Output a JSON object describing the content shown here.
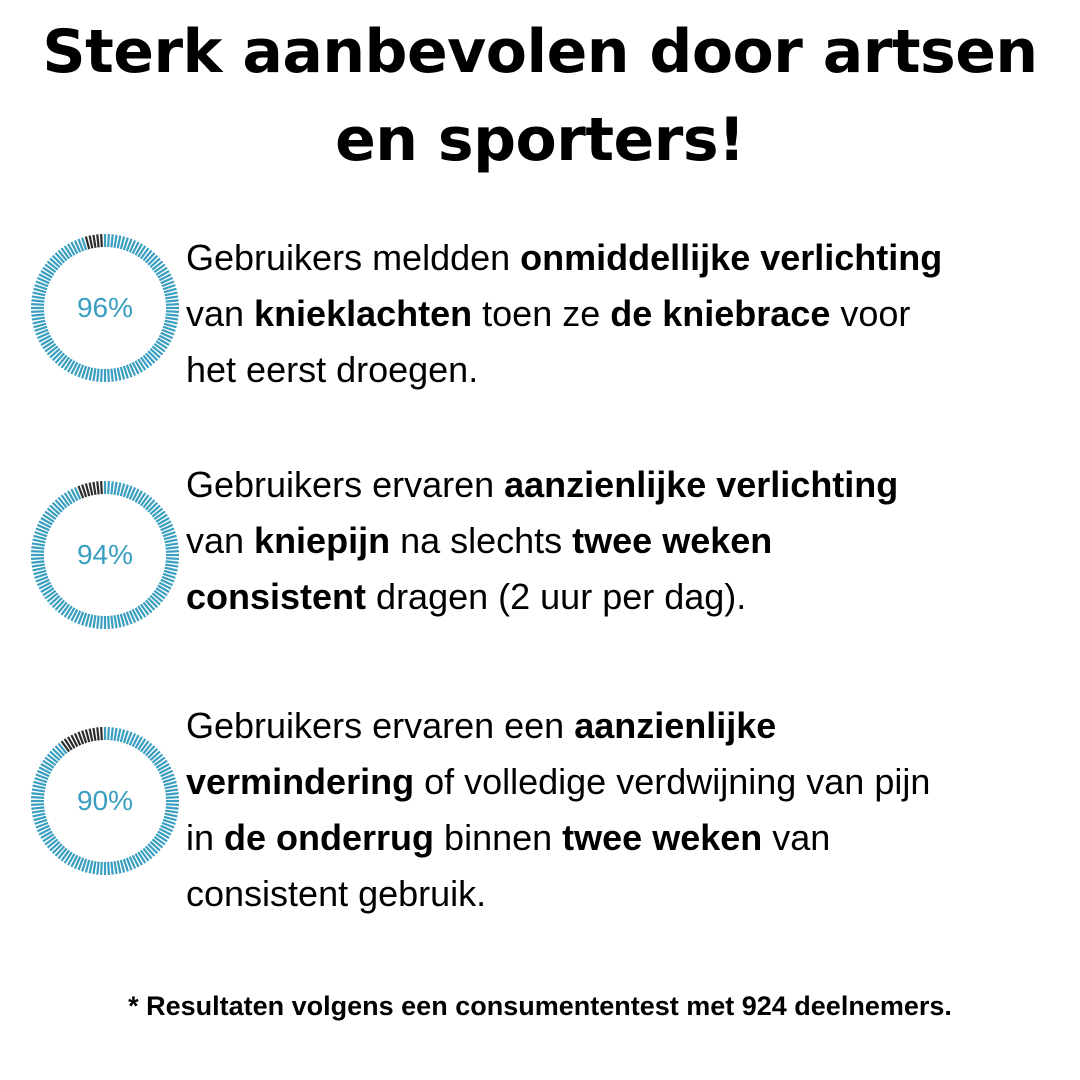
{
  "headline": {
    "line1": "Sterk aanbevolen door artsen",
    "line2": "en sporters!"
  },
  "colors": {
    "ring_fill": "#3a9ec0",
    "ring_remainder": "#2b2b2b",
    "percent_text": "#3a9ec0"
  },
  "chart_data": [
    {
      "type": "pie",
      "label": "96%",
      "value": 96,
      "max": 100
    },
    {
      "type": "pie",
      "label": "94%",
      "value": 94,
      "max": 100
    },
    {
      "type": "pie",
      "label": "90%",
      "value": 90,
      "max": 100
    }
  ],
  "stats": [
    {
      "lines": [
        [
          {
            "t": "Gebruikers meldden ",
            "b": false
          },
          {
            "t": "onmiddellijke verlichting",
            "b": true
          }
        ],
        [
          {
            "t": "van ",
            "b": false
          },
          {
            "t": "knieklachten",
            "b": true
          },
          {
            "t": " toen ze ",
            "b": false
          },
          {
            "t": "de kniebrace",
            "b": true
          },
          {
            "t": " voor",
            "b": false
          }
        ],
        [
          {
            "t": "het eerst droegen.",
            "b": false
          }
        ]
      ]
    },
    {
      "lines": [
        [
          {
            "t": "Gebruikers ervaren ",
            "b": false
          },
          {
            "t": "aanzienlijke verlichting",
            "b": true
          }
        ],
        [
          {
            "t": "van ",
            "b": false
          },
          {
            "t": "kniepijn",
            "b": true
          },
          {
            "t": " na slechts ",
            "b": false
          },
          {
            "t": "twee weken",
            "b": true
          }
        ],
        [
          {
            "t": "consistent",
            "b": true
          },
          {
            "t": "  dragen (2 uur per dag).",
            "b": false
          }
        ]
      ]
    },
    {
      "lines": [
        [
          {
            "t": "Gebruikers ervaren een ",
            "b": false
          },
          {
            "t": "aanzienlijke",
            "b": true
          }
        ],
        [
          {
            "t": "vermindering",
            "b": true
          },
          {
            "t": " of volledige verdwijning van pijn",
            "b": false
          }
        ],
        [
          {
            "t": "in ",
            "b": false
          },
          {
            "t": "de onderrug",
            "b": true
          },
          {
            "t": " binnen ",
            "b": false
          },
          {
            "t": "twee weken",
            "b": true
          },
          {
            "t": " van",
            "b": false
          }
        ],
        [
          {
            "t": "consistent gebruik.",
            "b": false
          }
        ]
      ]
    }
  ],
  "footnote": "* Resultaten volgens een consumententest met 924 deelnemers."
}
